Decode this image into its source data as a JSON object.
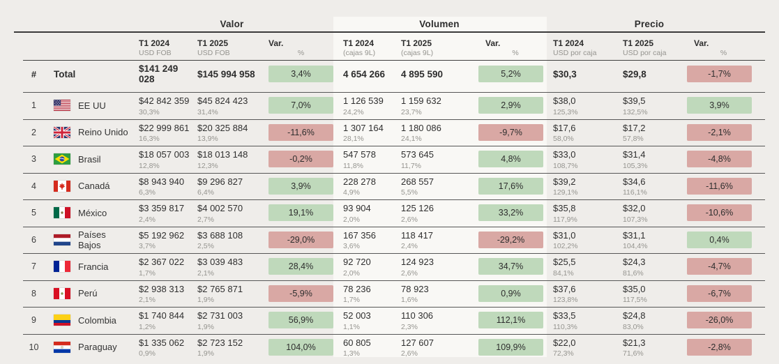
{
  "colors": {
    "background": "#efedea",
    "volumen_band": "#f9f8f5",
    "positive_badge": "#bfd9bb",
    "negative_badge": "#d9a8a4",
    "text_primary": "#2d2d2d",
    "text_secondary": "#95948f"
  },
  "header": {
    "rank_symbol": "#",
    "groups": [
      {
        "label": "Valor",
        "col_2024": "T1 2024",
        "col_2025": "T1 2025",
        "unit": "USD FOB",
        "var_label": "Var.",
        "var_unit": "%"
      },
      {
        "label": "Volumen",
        "col_2024": "T1 2024",
        "col_2025": "T1 2025",
        "unit": "(cajas 9L)",
        "var_label": "Var.",
        "var_unit": "%"
      },
      {
        "label": "Precio",
        "col_2024": "T1 2024",
        "col_2025": "T1 2025",
        "unit": "USD por caja",
        "var_label": "Var.",
        "var_unit": "%"
      }
    ]
  },
  "total": {
    "label": "Total",
    "valor": {
      "v2024": "$141 249 028",
      "v2025": "$145 994 958",
      "var": "3,4%",
      "dir": "up"
    },
    "volumen": {
      "v2024": "4 654 266",
      "v2025": "4 895 590",
      "var": "5,2%",
      "dir": "up"
    },
    "precio": {
      "v2024": "$30,3",
      "v2025": "$29,8",
      "var": "-1,7%",
      "dir": "down"
    }
  },
  "rows": [
    {
      "rank": "1",
      "country": "EE UU",
      "flag": "us",
      "valor": {
        "v2024": "$42 842 359",
        "s2024": "30,3%",
        "v2025": "$45 824 423",
        "s2025": "31,4%",
        "var": "7,0%",
        "dir": "up"
      },
      "volumen": {
        "v2024": "1 126 539",
        "s2024": "24,2%",
        "v2025": "1 159 632",
        "s2025": "23,7%",
        "var": "2,9%",
        "dir": "up"
      },
      "precio": {
        "v2024": "$38,0",
        "s2024": "125,3%",
        "v2025": "$39,5",
        "s2025": "132,5%",
        "var": "3,9%",
        "dir": "up"
      }
    },
    {
      "rank": "2",
      "country": "Reino Unido",
      "flag": "gb",
      "valor": {
        "v2024": "$22 999 861",
        "s2024": "16,3%",
        "v2025": "$20 325 884",
        "s2025": "13,9%",
        "var": "-11,6%",
        "dir": "down"
      },
      "volumen": {
        "v2024": "1 307 164",
        "s2024": "28,1%",
        "v2025": "1 180 086",
        "s2025": "24,1%",
        "var": "-9,7%",
        "dir": "down"
      },
      "precio": {
        "v2024": "$17,6",
        "s2024": "58,0%",
        "v2025": "$17,2",
        "s2025": "57,8%",
        "var": "-2,1%",
        "dir": "down"
      }
    },
    {
      "rank": "3",
      "country": "Brasil",
      "flag": "br",
      "valor": {
        "v2024": "$18 057 003",
        "s2024": "12,8%",
        "v2025": "$18 013 148",
        "s2025": "12,3%",
        "var": "-0,2%",
        "dir": "down"
      },
      "volumen": {
        "v2024": "547 578",
        "s2024": "11,8%",
        "v2025": "573 645",
        "s2025": "11,7%",
        "var": "4,8%",
        "dir": "up"
      },
      "precio": {
        "v2024": "$33,0",
        "s2024": "108,7%",
        "v2025": "$31,4",
        "s2025": "105,3%",
        "var": "-4,8%",
        "dir": "down"
      }
    },
    {
      "rank": "4",
      "country": "Canadá",
      "flag": "ca",
      "valor": {
        "v2024": "$8 943 940",
        "s2024": "6,3%",
        "v2025": "$9 296 827",
        "s2025": "6,4%",
        "var": "3,9%",
        "dir": "up"
      },
      "volumen": {
        "v2024": "228 278",
        "s2024": "4,9%",
        "v2025": "268 557",
        "s2025": "5,5%",
        "var": "17,6%",
        "dir": "up"
      },
      "precio": {
        "v2024": "$39,2",
        "s2024": "129,1%",
        "v2025": "$34,6",
        "s2025": "116,1%",
        "var": "-11,6%",
        "dir": "down"
      }
    },
    {
      "rank": "5",
      "country": "México",
      "flag": "mx",
      "valor": {
        "v2024": "$3 359 817",
        "s2024": "2,4%",
        "v2025": "$4 002 570",
        "s2025": "2,7%",
        "var": "19,1%",
        "dir": "up"
      },
      "volumen": {
        "v2024": "93 904",
        "s2024": "2,0%",
        "v2025": "125 126",
        "s2025": "2,6%",
        "var": "33,2%",
        "dir": "up"
      },
      "precio": {
        "v2024": "$35,8",
        "s2024": "117,9%",
        "v2025": "$32,0",
        "s2025": "107,3%",
        "var": "-10,6%",
        "dir": "down"
      }
    },
    {
      "rank": "6",
      "country": "Países Bajos",
      "flag": "nl",
      "valor": {
        "v2024": "$5 192 962",
        "s2024": "3,7%",
        "v2025": "$3 688 108",
        "s2025": "2,5%",
        "var": "-29,0%",
        "dir": "down"
      },
      "volumen": {
        "v2024": "167 356",
        "s2024": "3,6%",
        "v2025": "118 417",
        "s2025": "2,4%",
        "var": "-29,2%",
        "dir": "down"
      },
      "precio": {
        "v2024": "$31,0",
        "s2024": "102,2%",
        "v2025": "$31,1",
        "s2025": "104,4%",
        "var": "0,4%",
        "dir": "up"
      }
    },
    {
      "rank": "7",
      "country": "Francia",
      "flag": "fr",
      "valor": {
        "v2024": "$2 367 022",
        "s2024": "1,7%",
        "v2025": "$3 039 483",
        "s2025": "2,1%",
        "var": "28,4%",
        "dir": "up"
      },
      "volumen": {
        "v2024": "92 720",
        "s2024": "2,0%",
        "v2025": "124 923",
        "s2025": "2,6%",
        "var": "34,7%",
        "dir": "up"
      },
      "precio": {
        "v2024": "$25,5",
        "s2024": "84,1%",
        "v2025": "$24,3",
        "s2025": "81,6%",
        "var": "-4,7%",
        "dir": "down"
      }
    },
    {
      "rank": "8",
      "country": "Perú",
      "flag": "pe",
      "valor": {
        "v2024": "$2 938 313",
        "s2024": "2,1%",
        "v2025": "$2 765 871",
        "s2025": "1,9%",
        "var": "-5,9%",
        "dir": "down"
      },
      "volumen": {
        "v2024": "78 236",
        "s2024": "1,7%",
        "v2025": "78 923",
        "s2025": "1,6%",
        "var": "0,9%",
        "dir": "up"
      },
      "precio": {
        "v2024": "$37,6",
        "s2024": "123,8%",
        "v2025": "$35,0",
        "s2025": "117,5%",
        "var": "-6,7%",
        "dir": "down"
      }
    },
    {
      "rank": "9",
      "country": "Colombia",
      "flag": "co",
      "valor": {
        "v2024": "$1 740 844",
        "s2024": "1,2%",
        "v2025": "$2 731 003",
        "s2025": "1,9%",
        "var": "56,9%",
        "dir": "up"
      },
      "volumen": {
        "v2024": "52 003",
        "s2024": "1,1%",
        "v2025": "110 306",
        "s2025": "2,3%",
        "var": "112,1%",
        "dir": "up"
      },
      "precio": {
        "v2024": "$33,5",
        "s2024": "110,3%",
        "v2025": "$24,8",
        "s2025": "83,0%",
        "var": "-26,0%",
        "dir": "down"
      }
    },
    {
      "rank": "10",
      "country": "Paraguay",
      "flag": "py",
      "valor": {
        "v2024": "$1 335 062",
        "s2024": "0,9%",
        "v2025": "$2 723 152",
        "s2025": "1,9%",
        "var": "104,0%",
        "dir": "up"
      },
      "volumen": {
        "v2024": "60 805",
        "s2024": "1,3%",
        "v2025": "127 607",
        "s2025": "2,6%",
        "var": "109,9%",
        "dir": "up"
      },
      "precio": {
        "v2024": "$22,0",
        "s2024": "72,3%",
        "v2025": "$21,3",
        "s2025": "71,6%",
        "var": "-2,8%",
        "dir": "down"
      }
    }
  ]
}
